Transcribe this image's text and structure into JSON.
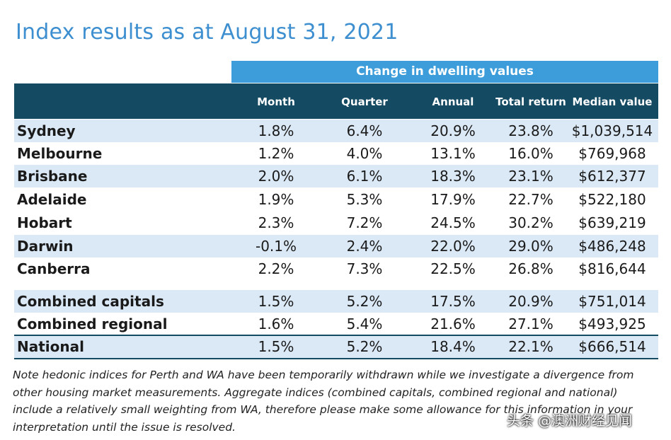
{
  "title": "Index results as at August 31, 2021",
  "group_header": "Change in dwelling values",
  "columns": [
    "Month",
    "Quarter",
    "Annual",
    "Total return",
    "Median value"
  ],
  "rows": [
    {
      "name": "Sydney",
      "month": "1.8%",
      "quarter": "6.4%",
      "annual": "20.9%",
      "total": "23.8%",
      "median": "$1,039,514"
    },
    {
      "name": "Melbourne",
      "month": "1.2%",
      "quarter": "4.0%",
      "annual": "13.1%",
      "total": "16.0%",
      "median": "$769,968"
    },
    {
      "name": "Brisbane",
      "month": "2.0%",
      "quarter": "6.1%",
      "annual": "18.3%",
      "total": "23.1%",
      "median": "$612,377"
    },
    {
      "name": "Adelaide",
      "month": "1.9%",
      "quarter": "5.3%",
      "annual": "17.9%",
      "total": "22.7%",
      "median": "$522,180"
    },
    {
      "name": "Hobart",
      "month": "2.3%",
      "quarter": "7.2%",
      "annual": "24.5%",
      "total": "30.2%",
      "median": "$639,219"
    },
    {
      "name": "Darwin",
      "month": "-0.1%",
      "quarter": "2.4%",
      "annual": "22.0%",
      "total": "29.0%",
      "median": "$486,248"
    },
    {
      "name": "Canberra",
      "month": "2.2%",
      "quarter": "7.3%",
      "annual": "22.5%",
      "total": "26.8%",
      "median": "$816,644"
    },
    {
      "name": "Combined capitals",
      "month": "1.5%",
      "quarter": "5.2%",
      "annual": "17.5%",
      "total": "20.9%",
      "median": "$751,014"
    },
    {
      "name": "Combined regional",
      "month": "1.6%",
      "quarter": "5.4%",
      "annual": "21.6%",
      "total": "27.1%",
      "median": "$493,925"
    },
    {
      "name": "National",
      "month": "1.5%",
      "quarter": "5.2%",
      "annual": "18.4%",
      "total": "22.1%",
      "median": "$666,514"
    }
  ],
  "note": "Note hedonic indices for Perth and WA have been temporarily withdrawn while we investigate a divergence from other housing market measurements. Aggregate indices (combined capitals, combined regional and national) include a relatively small weighting from WA, therefore please make some allowance for this information in your interpretation until the issue is resolved.",
  "watermark": "头条 @澳洲财经见闻",
  "colors": {
    "title": "#3d8fd0",
    "group_header_bg": "#3d9ddb",
    "column_header_bg": "#154a63",
    "row_shade": "#dbe9f6"
  }
}
